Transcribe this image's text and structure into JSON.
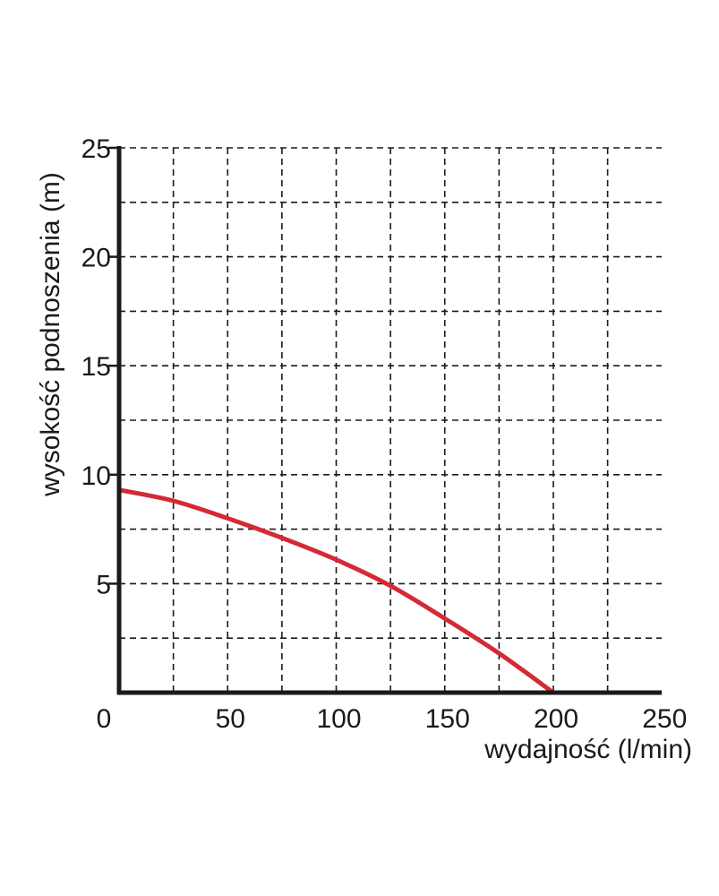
{
  "chart_data": {
    "type": "line",
    "xlabel": "wydajność (l/min)",
    "ylabel": "wysokość podnoszenia (m)",
    "xlim": [
      0,
      250
    ],
    "ylim": [
      0,
      25
    ],
    "x_ticks": [
      "0",
      "50",
      "100",
      "150",
      "200",
      "250"
    ],
    "y_ticks": [
      "5",
      "10",
      "15",
      "20",
      "25"
    ],
    "grid": "dashed, every 25 l/min and 2.5 m",
    "series": [
      {
        "color": "#d42a35",
        "x": [
          0,
          25,
          50,
          75,
          100,
          125,
          150,
          175,
          200
        ],
        "y": [
          9.3,
          8.8,
          8.0,
          7.1,
          6.1,
          4.9,
          3.4,
          1.8,
          0
        ]
      }
    ]
  }
}
